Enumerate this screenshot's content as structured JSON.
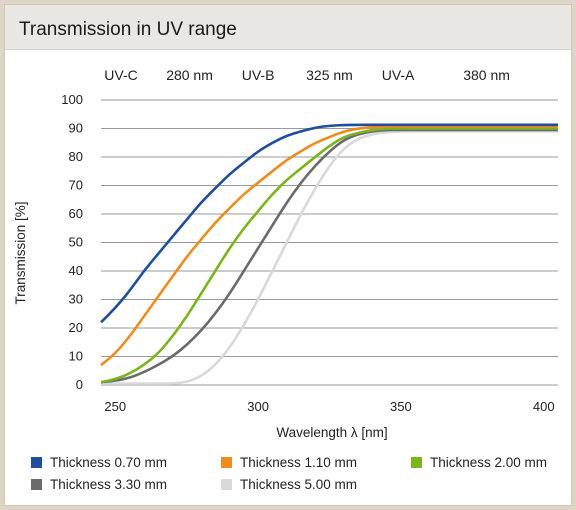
{
  "chart_data": {
    "type": "line",
    "title": "Transmission in UV range",
    "xlabel": "Wavelength λ [nm]",
    "ylabel": "Transmission [%]",
    "xlim": [
      245,
      405
    ],
    "ylim": [
      0,
      100
    ],
    "x_ticks": [
      250,
      300,
      350,
      400
    ],
    "y_ticks": [
      0,
      10,
      20,
      30,
      40,
      50,
      60,
      70,
      80,
      90,
      100
    ],
    "grid": "horizontal",
    "legend_position": "bottom",
    "band_labels": [
      {
        "text": "UV-C",
        "x": 252
      },
      {
        "text": "280 nm",
        "x": 276
      },
      {
        "text": "UV-B",
        "x": 300
      },
      {
        "text": "325 nm",
        "x": 325
      },
      {
        "text": "UV-A",
        "x": 349
      },
      {
        "text": "380 nm",
        "x": 380
      }
    ],
    "series": [
      {
        "name": "Thickness 0.70 mm",
        "color": "#1f4e9e",
        "x": [
          245,
          250,
          255,
          260,
          265,
          270,
          275,
          280,
          285,
          290,
          295,
          300,
          305,
          310,
          315,
          320,
          325,
          330,
          335,
          340,
          345,
          350,
          360,
          370,
          380,
          390,
          405
        ],
        "y": [
          22,
          27,
          33,
          40,
          46,
          52,
          58,
          64,
          69,
          74,
          78,
          82,
          85,
          87.5,
          89,
          90.3,
          91,
          91.2,
          91.3,
          91.3,
          91.3,
          91.3,
          91.3,
          91.3,
          91.3,
          91.3,
          91.3
        ]
      },
      {
        "name": "Thickness 1.10 mm",
        "color": "#ee8c1e",
        "x": [
          245,
          250,
          255,
          260,
          265,
          270,
          275,
          280,
          285,
          290,
          295,
          300,
          305,
          310,
          315,
          320,
          325,
          330,
          335,
          340,
          345,
          350,
          360,
          370,
          380,
          390,
          405
        ],
        "y": [
          7,
          11,
          17,
          24,
          31,
          38,
          45,
          51,
          57,
          62,
          67,
          71,
          75,
          79,
          82,
          85,
          87,
          89,
          90,
          90.5,
          90.7,
          90.7,
          90.7,
          90.7,
          90.7,
          90.7,
          90.7
        ]
      },
      {
        "name": "Thickness 2.00 mm",
        "color": "#7ab51d",
        "x": [
          245,
          250,
          255,
          260,
          265,
          270,
          275,
          280,
          285,
          290,
          295,
          300,
          305,
          310,
          315,
          320,
          325,
          330,
          335,
          340,
          345,
          350,
          360,
          370,
          380,
          390,
          405
        ],
        "y": [
          1,
          2,
          4,
          7,
          11,
          17,
          24,
          32,
          40,
          48,
          55,
          61,
          67,
          72,
          76,
          80,
          84,
          87,
          88.5,
          89.5,
          90,
          90,
          90,
          90,
          90,
          90,
          90
        ]
      },
      {
        "name": "Thickness 3.30 mm",
        "color": "#6b6b6b",
        "x": [
          245,
          250,
          255,
          260,
          265,
          270,
          275,
          280,
          285,
          290,
          295,
          300,
          305,
          310,
          315,
          320,
          325,
          330,
          335,
          340,
          345,
          350,
          360,
          370,
          380,
          390,
          405
        ],
        "y": [
          1,
          1.5,
          2.5,
          4.5,
          7,
          10,
          14,
          19,
          25,
          32,
          40,
          48,
          56,
          64,
          71,
          77,
          82,
          86,
          88,
          89,
          89.5,
          89.5,
          89.5,
          89.5,
          89.5,
          89.5,
          89.5
        ]
      },
      {
        "name": "Thickness 5.00 mm",
        "color": "#d9d9d9",
        "x": [
          245,
          250,
          255,
          260,
          265,
          270,
          275,
          280,
          285,
          290,
          295,
          300,
          305,
          310,
          315,
          320,
          325,
          330,
          335,
          340,
          345,
          350,
          360,
          370,
          380,
          390,
          405
        ],
        "y": [
          0.5,
          0.5,
          0.5,
          0.5,
          0.5,
          0.5,
          1,
          3,
          7,
          13,
          21,
          30,
          40,
          50,
          60,
          69,
          77,
          83,
          86.5,
          88,
          88.7,
          89,
          89,
          89,
          89,
          89,
          89
        ]
      }
    ]
  }
}
